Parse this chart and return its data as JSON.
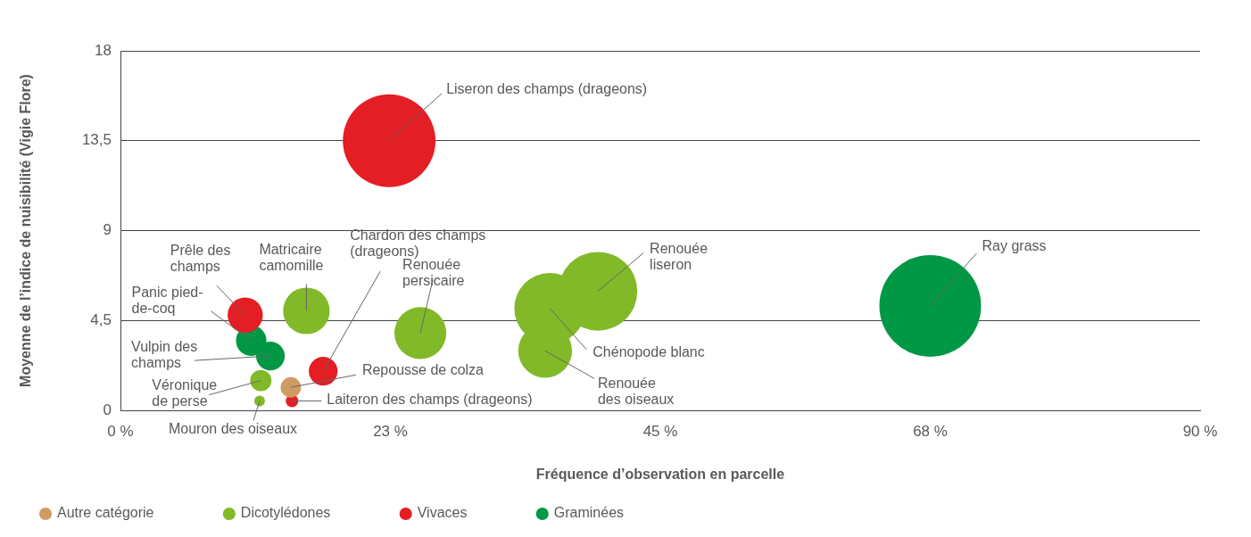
{
  "chart_data": {
    "type": "bubble",
    "xlabel": "Fréquence d’observation en parcelle",
    "ylabel": "Moyenne de l’indice de nuisibilité (Vigie Flore)",
    "xlim": [
      0,
      90
    ],
    "xticks": [
      {
        "value": 0,
        "label": "0 %"
      },
      {
        "value": 22.5,
        "label": "23 %"
      },
      {
        "value": 45,
        "label": "45 %"
      },
      {
        "value": 67.5,
        "label": "68 %"
      },
      {
        "value": 90,
        "label": "90 %"
      }
    ],
    "ylim": [
      0,
      18
    ],
    "yticks": [
      0,
      {
        "value": 4.5,
        "label": "4,5"
      },
      9,
      {
        "value": 13.5,
        "label": "13,5"
      },
      18
    ],
    "grid": "y",
    "legend": "bottom",
    "series": [
      {
        "name": "Autre catégorie",
        "color": "#d19a62",
        "x": [
          14.2
        ],
        "values": [
          1.15
        ],
        "sizes": [
          0.04
        ]
      },
      {
        "name": "Dicotylédones",
        "color": "#82b928",
        "x": [
          39.8,
          35.8,
          35.4,
          25.0,
          15.5,
          11.7,
          11.6
        ],
        "values": [
          5.96,
          5.1,
          2.98,
          3.87,
          4.98,
          1.49,
          0.47
        ],
        "sizes": [
          0.6,
          0.49,
          0.28,
          0.26,
          0.21,
          0.044,
          0.011
        ]
      },
      {
        "name": "Vivaces",
        "color": "#e31e24",
        "x": [
          22.4,
          10.4,
          16.9,
          14.3
        ],
        "values": [
          13.5,
          4.77,
          1.96,
          0.47
        ],
        "sizes": [
          0.83,
          0.12,
          0.08,
          0.015
        ]
      },
      {
        "name": "Graminées",
        "color": "#009845",
        "x": [
          67.5,
          10.9,
          12.5
        ],
        "values": [
          5.23,
          3.49,
          2.72
        ],
        "sizes": [
          1,
          0.09,
          0.08
        ]
      }
    ],
    "annotations": [
      {
        "text": "Liseron des champs (drageons)",
        "x": 22.4,
        "y": 13.5
      },
      {
        "text": "Ray grass",
        "x": 67.5,
        "y": 5.23
      },
      {
        "text": "Renouée\nliseron",
        "x": 39.8,
        "y": 5.96
      },
      {
        "text": "Chénopode blanc",
        "x": 35.8,
        "y": 5.1
      },
      {
        "text": "Renouée\ndes oiseaux",
        "x": 35.4,
        "y": 2.98
      },
      {
        "text": "Renouée\npersicaire",
        "x": 25.0,
        "y": 3.87
      },
      {
        "text": "Matricaire\ncamomille",
        "x": 15.5,
        "y": 4.98
      },
      {
        "text": "Prêle des\nchamps",
        "x": 10.4,
        "y": 4.77
      },
      {
        "text": "Panic pied-\nde-coq",
        "x": 10.9,
        "y": 3.49
      },
      {
        "text": "Vulpin des\nchamps",
        "x": 12.5,
        "y": 2.72
      },
      {
        "text": "Chardon des champs\n(drageons)",
        "x": 16.9,
        "y": 1.96
      },
      {
        "text": "Véronique\nde perse",
        "x": 11.7,
        "y": 1.49
      },
      {
        "text": "Repousse de colza",
        "x": 14.2,
        "y": 1.15
      },
      {
        "text": "Mouron des oiseaux",
        "x": 11.6,
        "y": 0.47
      },
      {
        "text": "Laiteron des champs (drageons)",
        "x": 14.3,
        "y": 0.47
      }
    ]
  }
}
